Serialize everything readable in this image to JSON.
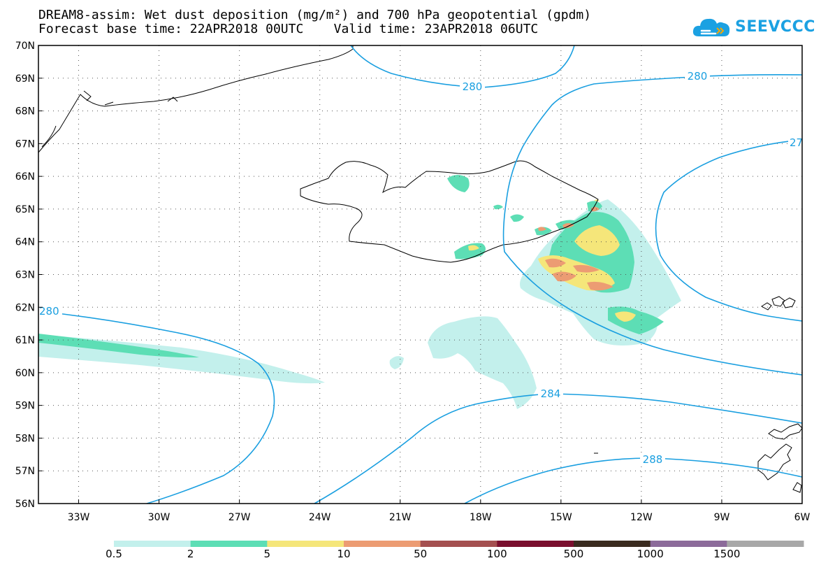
{
  "title": {
    "line1": "DREAM8-assim: Wet dust deposition (mg/m²) and 700 hPa geopotential (gpdm)",
    "line2": "Forecast base time: 22APR2018 00UTC    Valid time: 23APR2018 06UTC"
  },
  "logo": {
    "text": "SEEVCCC",
    "icon": "cloud-icon",
    "color": "#1ba1e2"
  },
  "map": {
    "lon_range": [
      -34.5,
      -6
    ],
    "lat_range": [
      56,
      70
    ],
    "lon_ticks": [
      "33W",
      "30W",
      "27W",
      "24W",
      "21W",
      "18W",
      "15W",
      "12W",
      "9W",
      "6W"
    ],
    "lat_ticks": [
      "70N",
      "69N",
      "68N",
      "67N",
      "66N",
      "65N",
      "64N",
      "63N",
      "62N",
      "61N",
      "60N",
      "59N",
      "58N",
      "57N",
      "56N"
    ],
    "gridlines": "dotted"
  },
  "contours": [
    {
      "label": "280",
      "color": "#1a9fe0"
    },
    {
      "label": "280",
      "color": "#1a9fe0"
    },
    {
      "label": "27",
      "color": "#1a9fe0"
    },
    {
      "label": "280",
      "color": "#1a9fe0"
    },
    {
      "label": "284",
      "color": "#1a9fe0"
    },
    {
      "label": "288",
      "color": "#1a9fe0"
    }
  ],
  "colorbar": {
    "labels": [
      "0.5",
      "2",
      "5",
      "10",
      "50",
      "100",
      "500",
      "1000",
      "1500"
    ],
    "colors": [
      "#c3f0ec",
      "#5ddeb5",
      "#f5e67a",
      "#ec9c73",
      "#a45050",
      "#7a0f2e",
      "#3a2b1f",
      "#8c6b9a",
      "#a8a8a8"
    ]
  }
}
